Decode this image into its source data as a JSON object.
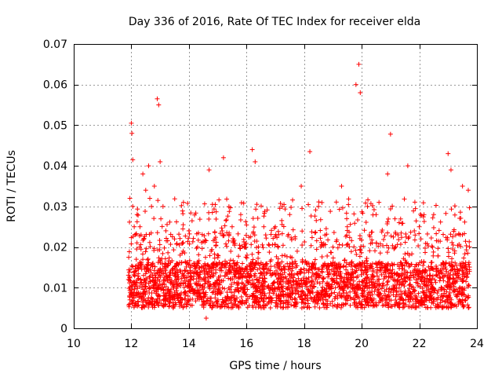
{
  "chart_data": {
    "type": "scatter",
    "title": "Day 336 of 2016, Rate Of TEC Index for receiver elda",
    "xlabel": "GPS time / hours",
    "ylabel": "ROTI / TECUs",
    "xlim": [
      10,
      24
    ],
    "ylim": [
      0,
      0.07
    ],
    "xticks": [
      "10",
      "12",
      "14",
      "16",
      "18",
      "20",
      "22",
      "24"
    ],
    "yticks": [
      "0",
      "0.01",
      "0.02",
      "0.03",
      "0.04",
      "0.05",
      "0.06",
      "0.07"
    ],
    "grid": true,
    "marker": "plus",
    "color": "#ff0000",
    "x_range_observed": [
      11.9,
      23.75
    ],
    "typical_band": [
      0.005,
      0.02
    ],
    "x": [
      11.9,
      11.95,
      12.0,
      12.02,
      12.05,
      12.1,
      12.2,
      12.3,
      12.4,
      12.5,
      12.6,
      12.7,
      12.8,
      12.9,
      12.95,
      13.0,
      13.1,
      13.2,
      13.5,
      13.8,
      14.0,
      14.3,
      14.6,
      14.7,
      15.0,
      15.2,
      15.5,
      15.8,
      16.2,
      16.3,
      16.6,
      17.0,
      17.5,
      17.9,
      18.2,
      18.5,
      19.0,
      19.3,
      19.5,
      19.8,
      19.9,
      19.95,
      20.2,
      20.5,
      20.9,
      21.0,
      21.3,
      21.6,
      22.0,
      22.5,
      23.0,
      23.1,
      23.5,
      23.7
    ],
    "y": [
      0.012,
      0.032,
      0.0505,
      0.048,
      0.0415,
      0.025,
      0.028,
      0.025,
      0.038,
      0.034,
      0.04,
      0.03,
      0.035,
      0.0565,
      0.055,
      0.041,
      0.03,
      0.024,
      0.022,
      0.019,
      0.024,
      0.02,
      0.0025,
      0.039,
      0.018,
      0.042,
      0.025,
      0.028,
      0.044,
      0.041,
      0.025,
      0.025,
      0.028,
      0.035,
      0.0435,
      0.03,
      0.02,
      0.035,
      0.025,
      0.06,
      0.065,
      0.058,
      0.03,
      0.028,
      0.038,
      0.0478,
      0.026,
      0.04,
      0.025,
      0.028,
      0.043,
      0.039,
      0.035,
      0.034
    ]
  }
}
